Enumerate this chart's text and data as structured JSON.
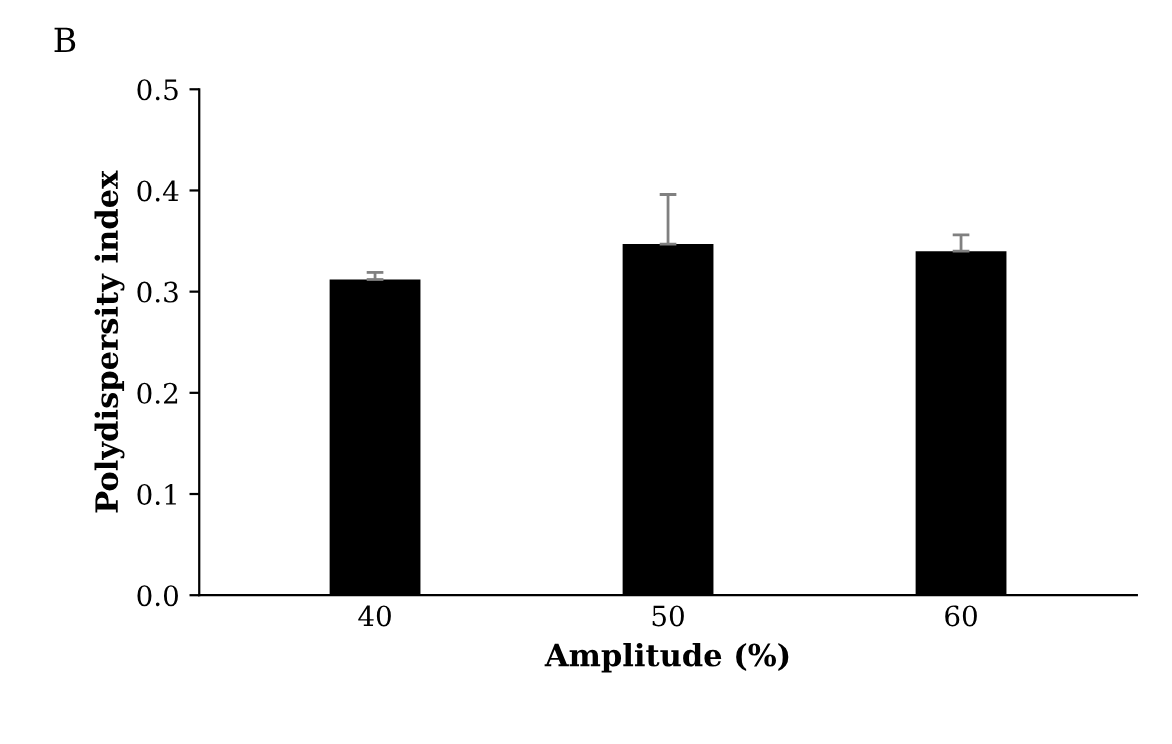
{
  "chart_data": {
    "type": "bar",
    "title": "B",
    "xlabel": "Amplitude (%)",
    "ylabel": "Polydispersity index",
    "categories": [
      "40",
      "50",
      "60"
    ],
    "values": [
      0.312,
      0.347,
      0.34
    ],
    "errors": [
      [
        0.312,
        0.319
      ],
      [
        0.347,
        0.396
      ],
      [
        0.34,
        0.356
      ]
    ],
    "color": "#000000",
    "ylim": [
      0,
      0.5
    ],
    "yticks": [
      {
        "value": 0,
        "label": "0.0"
      },
      0.1,
      0.2,
      0.3,
      0.4,
      0.5
    ],
    "grid": false,
    "legend": false
  }
}
